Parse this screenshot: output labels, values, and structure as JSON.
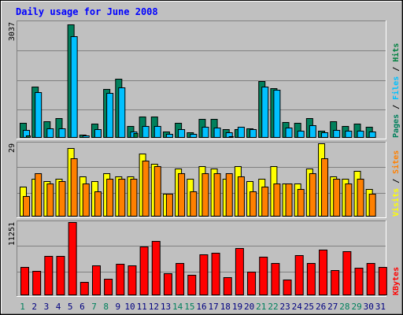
{
  "chart_data": {
    "type": "bar",
    "title": "Daily usage for June 2008",
    "categories": [
      "1",
      "2",
      "3",
      "4",
      "5",
      "6",
      "7",
      "8",
      "9",
      "10",
      "11",
      "12",
      "13",
      "14",
      "15",
      "16",
      "17",
      "18",
      "19",
      "20",
      "21",
      "22",
      "23",
      "24",
      "25",
      "26",
      "27",
      "28",
      "29",
      "30",
      "31"
    ],
    "weekend_days": [
      "1",
      "7",
      "8",
      "14",
      "15",
      "21",
      "22",
      "28",
      "29"
    ],
    "colors": {
      "pages": "#00805c",
      "files": "#00c0ff",
      "hits": "#008040",
      "visits": "#ffff00",
      "sites": "#ff8000",
      "kbytes": "#ff0000",
      "title": "#0000ff",
      "weekend_label": "#00805c",
      "weekday_label": "#000080",
      "plot_bg": "#c0c0c0",
      "grid": "#808080"
    },
    "panels": [
      {
        "name": "pages-files-hits",
        "ymax_label": "3037",
        "ymax": 3037,
        "legend": [
          "Pages",
          "Files",
          "Hits"
        ],
        "series": [
          {
            "name": "Pages",
            "values": [
              390,
              1340,
              430,
              510,
              2980,
              90,
              380,
              1290,
              1540,
              300,
              560,
              560,
              160,
              390,
              140,
              500,
              500,
              230,
              230,
              240,
              1480,
              1300,
              410,
              400,
              520,
              180,
              440,
              320,
              380,
              280,
              0
            ]
          },
          {
            "name": "Files",
            "values": [
              210,
              1200,
              240,
              250,
              2660,
              60,
              230,
              1170,
              1330,
              170,
              320,
              300,
              110,
              230,
              100,
              280,
              270,
              140,
              290,
              230,
              1350,
              1250,
              260,
              190,
              330,
              140,
              210,
              190,
              180,
              160,
              0
            ]
          },
          {
            "name": "Hits",
            "values": [
              60,
              0,
              0,
              0,
              0,
              0,
              0,
              0,
              0,
              120,
              0,
              0,
              0,
              0,
              0,
              0,
              0,
              40,
              0,
              0,
              0,
              0,
              0,
              0,
              0,
              0,
              0,
              0,
              0,
              0,
              0
            ]
          }
        ]
      },
      {
        "name": "visits-sites",
        "ymax_label": "29",
        "ymax": 29,
        "legend": [
          "Visits",
          "Sites"
        ],
        "series": [
          {
            "name": "Visits",
            "values": [
              12,
              15,
              14,
              15,
              27,
              16,
              14,
              17,
              16,
              16,
              25,
              21,
              9,
              19,
              15,
              20,
              19,
              15,
              20,
              14,
              15,
              20,
              13,
              13,
              19,
              29,
              16,
              15,
              18,
              11,
              0
            ]
          },
          {
            "name": "Sites",
            "values": [
              8,
              17,
              13,
              14,
              23,
              13,
              10,
              15,
              15,
              15,
              22,
              20,
              9,
              17,
              10,
              17,
              17,
              17,
              16,
              10,
              12,
              13,
              13,
              11,
              17,
              23,
              15,
              13,
              15,
              9,
              0
            ]
          }
        ]
      },
      {
        "name": "kbytes",
        "ymax_label": "11251",
        "ymax": 11251,
        "legend": [
          "KBytes"
        ],
        "series": [
          {
            "name": "KBytes",
            "values": [
              4300,
              3800,
              6100,
              6000,
              11251,
              2000,
              4600,
              2500,
              4800,
              4600,
              7500,
              8300,
              3400,
              5000,
              3100,
              6300,
              6500,
              2800,
              7300,
              3600,
              5900,
              4900,
              2400,
              6200,
              4900,
              7000,
              3900,
              6800,
              4200,
              5000,
              4300
            ]
          }
        ]
      }
    ]
  }
}
